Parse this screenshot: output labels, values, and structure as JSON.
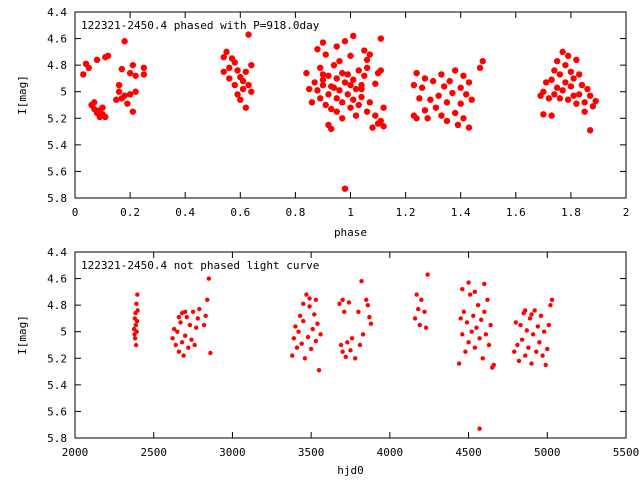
{
  "chart_data": [
    {
      "type": "scatter",
      "title": "122321-2450.4 phased with P=918.0day",
      "xlabel": "phase",
      "ylabel": "I[mag]",
      "xlim": [
        0,
        2
      ],
      "ylim": [
        5.8,
        4.4
      ],
      "y_inverted": true,
      "xticks": [
        "0",
        "0.2",
        "0.4",
        "0.6",
        "0.8",
        "1",
        "1.2",
        "1.4",
        "1.6",
        "1.8",
        "2"
      ],
      "xtick_values": [
        0,
        0.2,
        0.4,
        0.6,
        0.8,
        1.0,
        1.2,
        1.4,
        1.6,
        1.8,
        2.0
      ],
      "yticks": [
        "4.4",
        "4.6",
        "4.8",
        "5",
        "5.2",
        "5.4",
        "5.6",
        "5.8"
      ],
      "ytick_values": [
        4.4,
        4.6,
        4.8,
        5.0,
        5.2,
        5.4,
        5.6,
        5.8
      ],
      "grid": false,
      "marker_color": "#ff0000",
      "points": [
        [
          0.03,
          4.87
        ],
        [
          0.04,
          4.79
        ],
        [
          0.05,
          4.82
        ],
        [
          0.06,
          5.1
        ],
        [
          0.07,
          5.13
        ],
        [
          0.07,
          5.08
        ],
        [
          0.08,
          5.16
        ],
        [
          0.08,
          4.76
        ],
        [
          0.09,
          5.14
        ],
        [
          0.09,
          5.19
        ],
        [
          0.1,
          5.17
        ],
        [
          0.1,
          5.12
        ],
        [
          0.11,
          4.74
        ],
        [
          0.11,
          5.19
        ],
        [
          0.12,
          4.73
        ],
        [
          0.15,
          5.06
        ],
        [
          0.16,
          5.0
        ],
        [
          0.16,
          4.95
        ],
        [
          0.17,
          5.05
        ],
        [
          0.17,
          4.83
        ],
        [
          0.18,
          4.62
        ],
        [
          0.18,
          5.03
        ],
        [
          0.19,
          5.09
        ],
        [
          0.2,
          5.02
        ],
        [
          0.2,
          4.86
        ],
        [
          0.21,
          5.15
        ],
        [
          0.21,
          4.8
        ],
        [
          0.22,
          4.88
        ],
        [
          0.22,
          5.0
        ],
        [
          0.25,
          4.82
        ],
        [
          0.25,
          4.87
        ],
        [
          0.54,
          4.85
        ],
        [
          0.54,
          4.74
        ],
        [
          0.55,
          4.7
        ],
        [
          0.56,
          4.82
        ],
        [
          0.56,
          4.9
        ],
        [
          0.57,
          4.75
        ],
        [
          0.58,
          4.95
        ],
        [
          0.58,
          4.78
        ],
        [
          0.59,
          5.02
        ],
        [
          0.59,
          4.84
        ],
        [
          0.6,
          4.89
        ],
        [
          0.6,
          5.06
        ],
        [
          0.61,
          4.98
        ],
        [
          0.61,
          4.92
        ],
        [
          0.62,
          5.12
        ],
        [
          0.62,
          4.85
        ],
        [
          0.63,
          4.95
        ],
        [
          0.63,
          4.57
        ],
        [
          0.64,
          5.0
        ],
        [
          0.64,
          4.8
        ],
        [
          0.84,
          4.86
        ],
        [
          0.85,
          4.98
        ],
        [
          0.86,
          5.08
        ],
        [
          0.87,
          4.93
        ],
        [
          0.88,
          4.99
        ],
        [
          0.88,
          4.68
        ],
        [
          0.89,
          4.82
        ],
        [
          0.89,
          5.05
        ],
        [
          0.9,
          4.87
        ],
        [
          0.9,
          4.95
        ],
        [
          0.9,
          4.91
        ],
        [
          0.91,
          5.1
        ],
        [
          0.91,
          4.72
        ],
        [
          0.92,
          5.02
        ],
        [
          0.92,
          4.88
        ],
        [
          0.92,
          5.25
        ],
        [
          0.93,
          4.96
        ],
        [
          0.93,
          5.13
        ],
        [
          0.94,
          4.97
        ],
        [
          0.94,
          4.8
        ],
        [
          0.95,
          5.05
        ],
        [
          0.95,
          4.9
        ],
        [
          0.95,
          5.15
        ],
        [
          0.96,
          4.99
        ],
        [
          0.96,
          4.77
        ],
        [
          0.97,
          5.08
        ],
        [
          0.97,
          4.86
        ],
        [
          0.97,
          5.2
        ],
        [
          0.98,
          4.93
        ],
        [
          0.98,
          5.73
        ],
        [
          0.98,
          4.62
        ],
        [
          0.99,
          5.02
        ],
        [
          0.99,
          4.87
        ],
        [
          1.0,
          5.12
        ],
        [
          1.0,
          4.95
        ],
        [
          1.0,
          4.73
        ],
        [
          1.01,
          5.06
        ],
        [
          1.01,
          4.91
        ],
        [
          1.02,
          5.18
        ],
        [
          1.02,
          4.98
        ],
        [
          1.03,
          4.84
        ],
        [
          1.03,
          5.1
        ],
        [
          1.04,
          4.95
        ],
        [
          1.04,
          5.04
        ],
        [
          1.05,
          4.88
        ],
        [
          1.06,
          5.15
        ],
        [
          1.06,
          4.76
        ],
        [
          1.07,
          5.08
        ],
        [
          1.08,
          5.27
        ],
        [
          1.09,
          4.94
        ],
        [
          1.09,
          5.18
        ],
        [
          1.1,
          5.24
        ],
        [
          1.1,
          4.86
        ],
        [
          1.11,
          5.22
        ],
        [
          1.11,
          4.84
        ],
        [
          1.11,
          4.6
        ],
        [
          1.12,
          5.26
        ],
        [
          1.12,
          5.12
        ],
        [
          0.95,
          4.66
        ],
        [
          0.9,
          4.63
        ],
        [
          0.93,
          5.28
        ],
        [
          1.04,
          4.98
        ],
        [
          1.01,
          4.58
        ],
        [
          1.05,
          4.69
        ],
        [
          1.06,
          4.82
        ],
        [
          1.07,
          4.72
        ],
        [
          1.23,
          4.95
        ],
        [
          1.23,
          5.18
        ],
        [
          1.24,
          5.2
        ],
        [
          1.24,
          4.86
        ],
        [
          1.25,
          5.05
        ],
        [
          1.26,
          4.97
        ],
        [
          1.27,
          5.14
        ],
        [
          1.27,
          4.9
        ],
        [
          1.28,
          5.2
        ],
        [
          1.29,
          5.06
        ],
        [
          1.3,
          4.92
        ],
        [
          1.31,
          5.12
        ],
        [
          1.32,
          5.03
        ],
        [
          1.33,
          4.87
        ],
        [
          1.33,
          5.18
        ],
        [
          1.34,
          4.96
        ],
        [
          1.35,
          5.08
        ],
        [
          1.35,
          5.22
        ],
        [
          1.36,
          4.92
        ],
        [
          1.37,
          5.01
        ],
        [
          1.38,
          4.84
        ],
        [
          1.38,
          5.16
        ],
        [
          1.39,
          5.25
        ],
        [
          1.4,
          4.97
        ],
        [
          1.4,
          5.09
        ],
        [
          1.41,
          4.88
        ],
        [
          1.41,
          5.2
        ],
        [
          1.42,
          5.02
        ],
        [
          1.43,
          4.93
        ],
        [
          1.43,
          5.27
        ],
        [
          1.44,
          5.06
        ],
        [
          1.47,
          4.82
        ],
        [
          1.48,
          4.77
        ],
        [
          1.69,
          5.03
        ],
        [
          1.7,
          5.17
        ],
        [
          1.7,
          5.0
        ],
        [
          1.71,
          4.93
        ],
        [
          1.72,
          5.05
        ],
        [
          1.73,
          5.18
        ],
        [
          1.73,
          4.91
        ],
        [
          1.74,
          4.84
        ],
        [
          1.74,
          5.02
        ],
        [
          1.75,
          4.77
        ],
        [
          1.75,
          4.97
        ],
        [
          1.76,
          5.05
        ],
        [
          1.76,
          4.87
        ],
        [
          1.77,
          4.7
        ],
        [
          1.77,
          4.99
        ],
        [
          1.78,
          4.93
        ],
        [
          1.78,
          4.8
        ],
        [
          1.79,
          5.06
        ],
        [
          1.79,
          4.73
        ],
        [
          1.8,
          4.96
        ],
        [
          1.8,
          4.85
        ],
        [
          1.81,
          5.03
        ],
        [
          1.81,
          4.9
        ],
        [
          1.82,
          5.09
        ],
        [
          1.82,
          4.76
        ],
        [
          1.83,
          5.02
        ],
        [
          1.83,
          4.87
        ],
        [
          1.84,
          4.95
        ],
        [
          1.85,
          5.08
        ],
        [
          1.85,
          5.15
        ],
        [
          1.86,
          4.98
        ],
        [
          1.87,
          5.03
        ],
        [
          1.87,
          5.29
        ],
        [
          1.88,
          5.11
        ],
        [
          1.89,
          5.07
        ]
      ]
    },
    {
      "type": "scatter",
      "title": "122321-2450.4 not phased light curve",
      "xlabel": "hjd0",
      "ylabel": "I[mag]",
      "xlim": [
        2000,
        5500
      ],
      "ylim": [
        5.8,
        4.4
      ],
      "y_inverted": true,
      "xticks": [
        "2000",
        "2500",
        "3000",
        "3500",
        "4000",
        "4500",
        "5000",
        "5500"
      ],
      "xtick_values": [
        2000,
        2500,
        3000,
        3500,
        4000,
        4500,
        5000,
        5500
      ],
      "yticks": [
        "4.4",
        "4.6",
        "4.8",
        "5",
        "5.2",
        "5.4",
        "5.6",
        "5.8"
      ],
      "ytick_values": [
        4.4,
        4.6,
        4.8,
        5.0,
        5.2,
        5.4,
        5.6,
        5.8
      ],
      "grid": false,
      "marker_color": "#ff0000",
      "points": [
        [
          2375,
          4.98
        ],
        [
          2378,
          5.02
        ],
        [
          2380,
          4.9
        ],
        [
          2382,
          5.05
        ],
        [
          2384,
          4.86
        ],
        [
          2386,
          4.95
        ],
        [
          2388,
          5.1
        ],
        [
          2390,
          4.79
        ],
        [
          2392,
          5.0
        ],
        [
          2394,
          4.92
        ],
        [
          2396,
          4.72
        ],
        [
          2398,
          4.84
        ],
        [
          2620,
          5.05
        ],
        [
          2630,
          4.98
        ],
        [
          2640,
          5.1
        ],
        [
          2650,
          5.0
        ],
        [
          2660,
          5.15
        ],
        [
          2670,
          4.93
        ],
        [
          2680,
          5.08
        ],
        [
          2690,
          5.18
        ],
        [
          2700,
          5.03
        ],
        [
          2710,
          4.89
        ],
        [
          2720,
          5.12
        ],
        [
          2730,
          4.95
        ],
        [
          2740,
          5.06
        ],
        [
          2750,
          4.85
        ],
        [
          2760,
          5.1
        ],
        [
          2770,
          4.97
        ],
        [
          2780,
          4.9
        ],
        [
          2820,
          4.95
        ],
        [
          2830,
          4.88
        ],
        [
          2840,
          4.76
        ],
        [
          2850,
          4.6
        ],
        [
          2860,
          5.16
        ],
        [
          2790,
          4.83
        ],
        [
          2660,
          4.89
        ],
        [
          2680,
          4.86
        ],
        [
          2700,
          4.85
        ],
        [
          3380,
          5.18
        ],
        [
          3390,
          5.05
        ],
        [
          3400,
          4.96
        ],
        [
          3410,
          5.12
        ],
        [
          3420,
          5.0
        ],
        [
          3430,
          4.88
        ],
        [
          3440,
          5.09
        ],
        [
          3450,
          4.92
        ],
        [
          3460,
          5.2
        ],
        [
          3470,
          4.72
        ],
        [
          3480,
          5.04
        ],
        [
          3490,
          4.81
        ],
        [
          3500,
          5.13
        ],
        [
          3510,
          4.98
        ],
        [
          3520,
          4.87
        ],
        [
          3530,
          5.07
        ],
        [
          3540,
          4.94
        ],
        [
          3550,
          5.29
        ],
        [
          3560,
          5.02
        ],
        [
          3450,
          4.79
        ],
        [
          3490,
          4.75
        ],
        [
          3530,
          4.76
        ],
        [
          3680,
          4.79
        ],
        [
          3690,
          5.1
        ],
        [
          3700,
          5.15
        ],
        [
          3710,
          4.85
        ],
        [
          3720,
          5.19
        ],
        [
          3730,
          5.08
        ],
        [
          3740,
          4.78
        ],
        [
          3750,
          5.14
        ],
        [
          3760,
          5.05
        ],
        [
          3780,
          5.2
        ],
        [
          3800,
          4.85
        ],
        [
          3810,
          5.1
        ],
        [
          3820,
          4.62
        ],
        [
          3830,
          5.02
        ],
        [
          3850,
          4.76
        ],
        [
          3860,
          4.8
        ],
        [
          3870,
          4.89
        ],
        [
          3880,
          4.94
        ],
        [
          3700,
          4.76
        ],
        [
          4160,
          4.9
        ],
        [
          4170,
          4.72
        ],
        [
          4180,
          4.83
        ],
        [
          4190,
          4.95
        ],
        [
          4200,
          4.76
        ],
        [
          4220,
          4.85
        ],
        [
          4230,
          4.97
        ],
        [
          4240,
          4.57
        ],
        [
          4440,
          5.24
        ],
        [
          4450,
          4.9
        ],
        [
          4460,
          5.02
        ],
        [
          4470,
          4.85
        ],
        [
          4480,
          5.15
        ],
        [
          4490,
          4.93
        ],
        [
          4500,
          5.08
        ],
        [
          4510,
          4.72
        ],
        [
          4520,
          5.0
        ],
        [
          4530,
          4.88
        ],
        [
          4540,
          5.12
        ],
        [
          4550,
          4.97
        ],
        [
          4560,
          4.8
        ],
        [
          4570,
          5.05
        ],
        [
          4580,
          4.91
        ],
        [
          4590,
          5.2
        ],
        [
          4600,
          4.85
        ],
        [
          4610,
          5.02
        ],
        [
          4620,
          4.76
        ],
        [
          4630,
          5.1
        ],
        [
          4640,
          4.95
        ],
        [
          4650,
          5.27
        ],
        [
          4660,
          5.25
        ],
        [
          4570,
          5.73
        ],
        [
          4460,
          4.68
        ],
        [
          4500,
          4.63
        ],
        [
          4540,
          4.7
        ],
        [
          4600,
          4.64
        ],
        [
          4790,
          5.15
        ],
        [
          4800,
          4.93
        ],
        [
          4810,
          5.1
        ],
        [
          4820,
          5.22
        ],
        [
          4830,
          4.95
        ],
        [
          4840,
          5.06
        ],
        [
          4850,
          4.86
        ],
        [
          4860,
          5.18
        ],
        [
          4870,
          4.99
        ],
        [
          4880,
          5.12
        ],
        [
          4890,
          4.9
        ],
        [
          4900,
          5.24
        ],
        [
          4910,
          5.02
        ],
        [
          4920,
          4.84
        ],
        [
          4930,
          5.15
        ],
        [
          4940,
          4.96
        ],
        [
          4950,
          5.08
        ],
        [
          4960,
          4.88
        ],
        [
          4970,
          5.18
        ],
        [
          4980,
          5.0
        ],
        [
          4990,
          5.25
        ],
        [
          5000,
          5.13
        ],
        [
          5010,
          4.95
        ],
        [
          5020,
          4.8
        ],
        [
          5030,
          4.76
        ],
        [
          4860,
          4.84
        ],
        [
          4900,
          4.87
        ]
      ]
    }
  ]
}
